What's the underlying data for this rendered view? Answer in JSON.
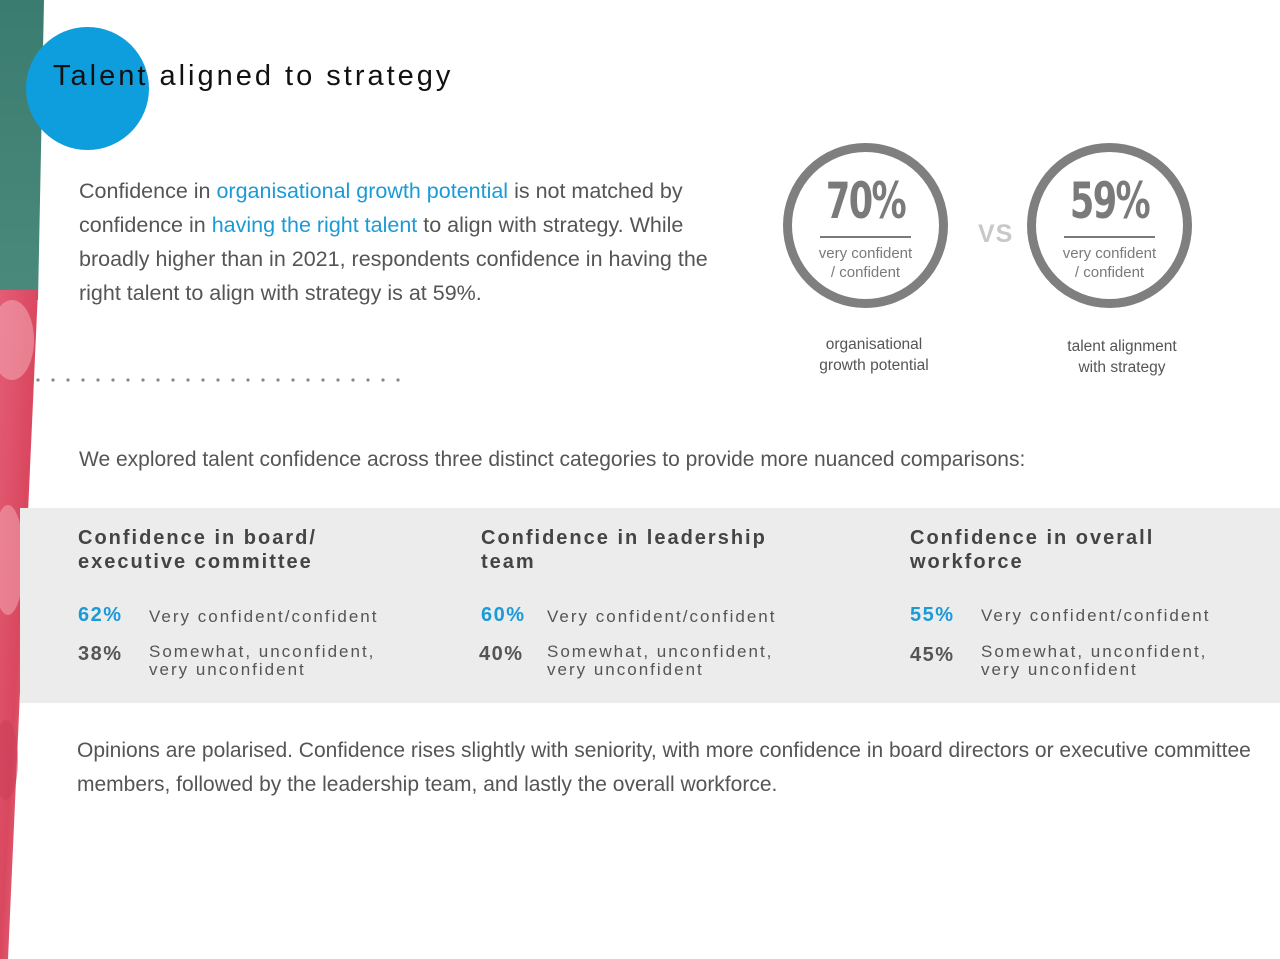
{
  "header": {
    "title": "Talent aligned to strategy"
  },
  "intro": {
    "p1": "Confidence in ",
    "h1": "organisational growth potential",
    "p2": " is not matched by confidence in ",
    "h2": "having the right talent",
    "p3": " to align with strategy. While broadly higher than in 2021, respondents confidence in having the right talent to align with strategy is at 59%."
  },
  "comparison": {
    "vs_label": "VS",
    "left": {
      "value": "70%",
      "sub_line1": "very confident",
      "sub_line2": "/ confident",
      "caption_line1": "organisational",
      "caption_line2": "growth potential"
    },
    "right": {
      "value": "59%",
      "sub_line1": "very confident",
      "sub_line2": "/ confident",
      "caption_line1": "talent alignment",
      "caption_line2": "with strategy"
    }
  },
  "lead_text": "We explored talent confidence across three distinct categories to provide more nuanced comparisons:",
  "categories": [
    {
      "title_line1": "Confidence in board/",
      "title_line2": "executive committee",
      "confident_pct": "62%",
      "confident_label": "Very confident/confident",
      "other_pct": "38%",
      "other_label_line1": "Somewhat, unconfident,",
      "other_label_line2": "very unconfident"
    },
    {
      "title_line1": "Confidence in leadership",
      "title_line2": "team",
      "confident_pct": "60%",
      "confident_label": "Very confident/confident",
      "other_pct": "40%",
      "other_label_line1": "Somewhat, unconfident,",
      "other_label_line2": "very unconfident"
    },
    {
      "title_line1": "Confidence in overall",
      "title_line2": "workforce",
      "confident_pct": "55%",
      "confident_label": "Very confident/confident",
      "other_pct": "45%",
      "other_label_line1": "Somewhat, unconfident,",
      "other_label_line2": "very unconfident"
    }
  ],
  "outro": "Opinions are polarised. Confidence rises slightly with seniority, with more confidence in board directors or executive committee members, followed by the leadership team, and lastly the overall workforce.",
  "colors": {
    "accent_blue": "#1a9ad6",
    "circle_blue": "#0e9ede",
    "ring_grey": "#7f7f7f",
    "band_grey": "#ececec",
    "side_teal": "#3e8074",
    "side_pink": "#e0546e"
  }
}
